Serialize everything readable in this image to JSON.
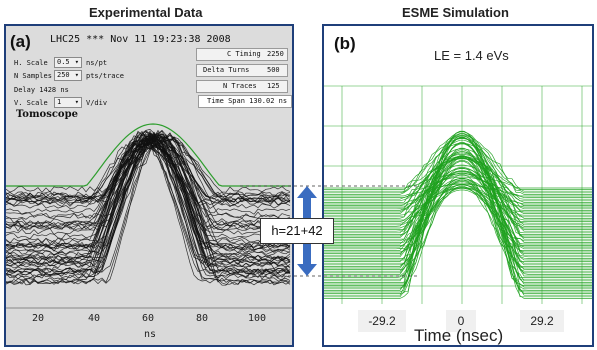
{
  "headings": {
    "left": "Experimental Data",
    "right": "ESME Simulation"
  },
  "left_panel": {
    "tag": "(a)",
    "title": "LHC25 *** Nov 11 19:23:38 2008",
    "controls": {
      "h_scale_label": "H. Scale",
      "h_scale_value": "0.5",
      "h_scale_unit": "ns/pt",
      "n_samples_label": "N Samples",
      "n_samples_value": "250",
      "n_samples_unit": "pts/trace",
      "delay": "Delay 1428 ns",
      "v_scale_label": "V. Scale",
      "v_scale_value": "1",
      "v_scale_unit": "V/div",
      "app_name": "Tomoscope"
    },
    "info": {
      "c_timing_label": "C Timing",
      "c_timing_value": "2250",
      "delta_turns_label": "Delta Turns",
      "delta_turns_value": "500",
      "n_traces_label": "N Traces",
      "n_traces_value": "125",
      "time_span": "Time Span 130.02 ns"
    },
    "x_ticks": [
      "20",
      "40",
      "60",
      "80",
      "100"
    ],
    "x_unit": "ns",
    "trace_color": "#111111",
    "outline_color": "#2e9e2e"
  },
  "right_panel": {
    "tag": "(b)",
    "energy_label": "LE = 1.4 eVs",
    "x_ticks": [
      "-29.2",
      "0",
      "29.2"
    ],
    "axis_title": "Time (nsec)",
    "trace_color": "#1ea11e"
  },
  "annotation": {
    "text": "h=21+42",
    "arrow_color": "#3a6cc0"
  }
}
